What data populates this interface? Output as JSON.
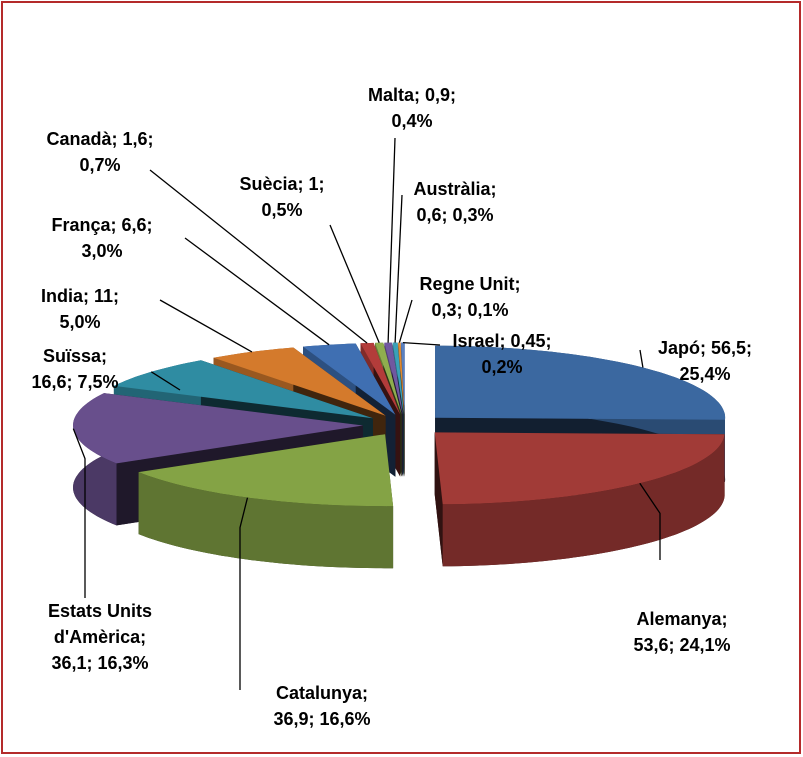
{
  "chart_data": {
    "type": "pie3d",
    "categories": [
      "Japó",
      "Alemanya",
      "Catalunya",
      "Estats Units d'Amèrica",
      "Suïssa",
      "India",
      "França",
      "Canadà",
      "Suècia",
      "Malta",
      "Austràlia",
      "Regne Unit",
      "Israel"
    ],
    "values": [
      56.5,
      53.6,
      36.9,
      36.1,
      16.6,
      11,
      6.6,
      1.6,
      1,
      0.9,
      0.6,
      0.3,
      0.45
    ],
    "data_labels": [
      [
        "Japó; 56,5;",
        "25,4%"
      ],
      [
        "Alemanya;",
        "53,6; 24,1%"
      ],
      [
        "Catalunya;",
        "36,9; 16,6%"
      ],
      [
        "Estats Units",
        "d'Amèrica;",
        "36,1; 16,3%"
      ],
      [
        "Suïssa;",
        "16,6; 7,5%"
      ],
      [
        "India; 11;",
        "5,0%"
      ],
      [
        "França; 6,6;",
        "3,0%"
      ],
      [
        "Canadà; 1,6;",
        "0,7%"
      ],
      [
        "Suècia; 1;",
        "0,5%"
      ],
      [
        "Malta; 0,9;",
        "0,4%"
      ],
      [
        "Austràlia;",
        "0,6; 0,3%"
      ],
      [
        "Regne Unit;",
        "0,3; 0,1%"
      ],
      [
        "Israel; 0,45;",
        "0,2%"
      ]
    ],
    "colors": [
      "#3b68a0",
      "#a13b37",
      "#84a345",
      "#684f8c",
      "#2f8ca2",
      "#d47a2c",
      "#3f6fb2",
      "#b33c3a",
      "#8fae4e",
      "#7058a0",
      "#3aa0b8",
      "#e08a30",
      "#5a80c0"
    ]
  }
}
